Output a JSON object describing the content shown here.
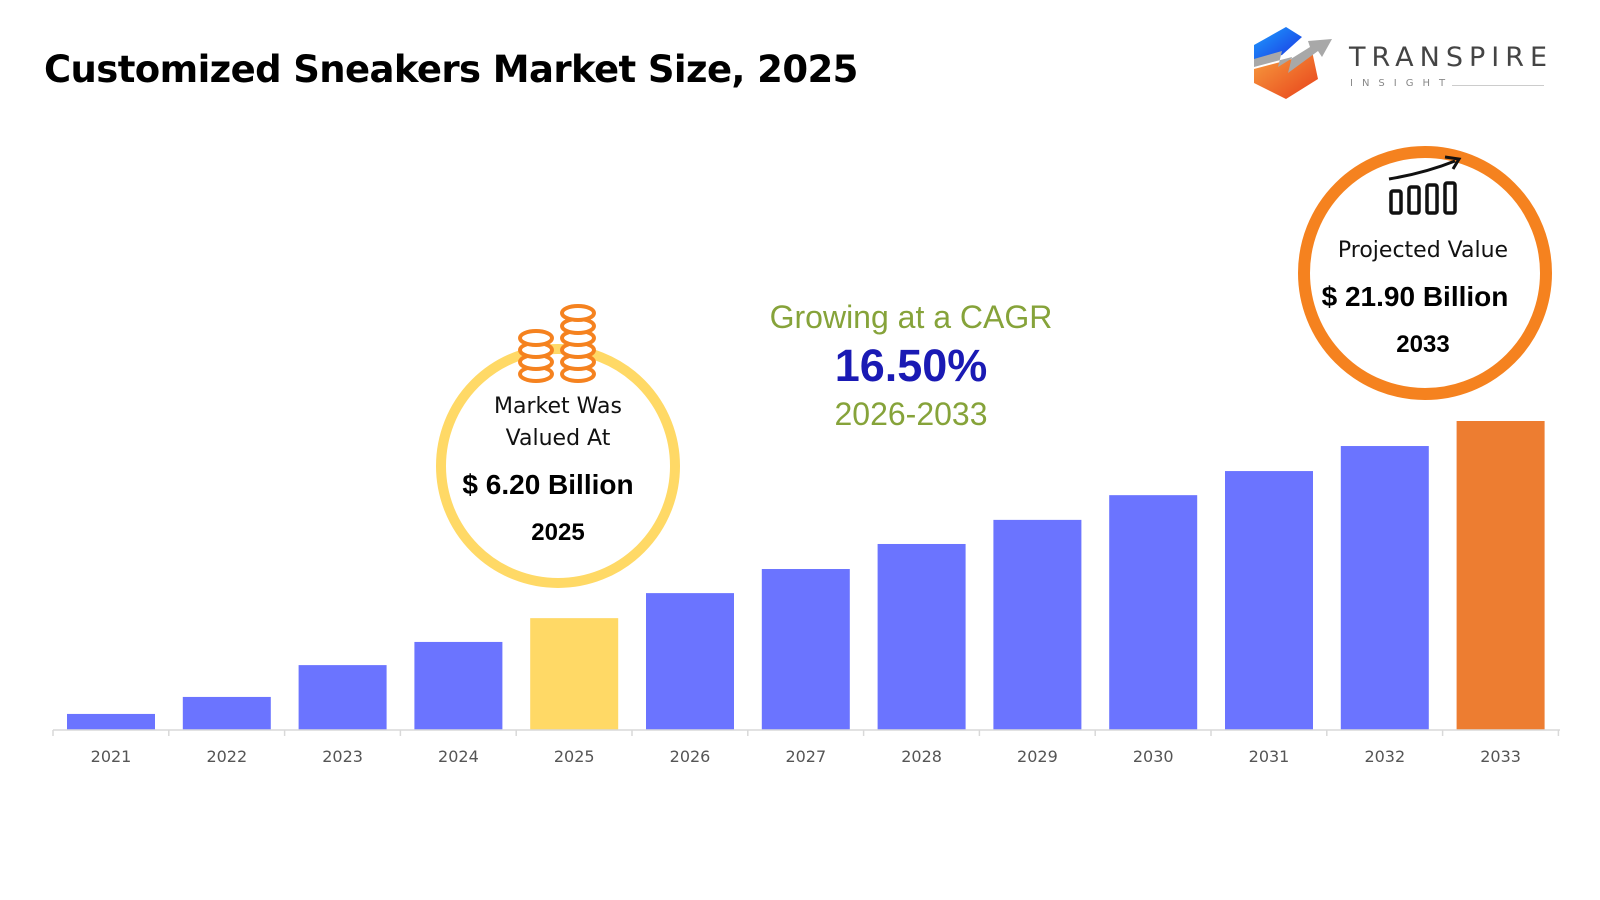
{
  "title": "Customized Sneakers Market Size, 2025",
  "logo": {
    "name": "TRANSPIRE",
    "sub": "INSIGHT"
  },
  "left_callout": {
    "line1": "Market Was",
    "line2": "Valued At",
    "value": "$ 6.20 Billion",
    "year": "2025",
    "icon": "coins-icon"
  },
  "cagr": {
    "label": "Growing at a CAGR",
    "value": "16.50%",
    "period": "2026-2033"
  },
  "right_callout": {
    "label": "Projected Value",
    "value": "$ 21.90 Billion",
    "year": "2033",
    "icon": "growth-chart-icon"
  },
  "colors": {
    "bar": "#6B74FF",
    "highlight_base": "#FFD966",
    "highlight_forecast": "#ED7D31",
    "cagr_green": "#86A33A",
    "cagr_blue": "#1A1AB4"
  },
  "chart_data": {
    "type": "bar",
    "categories": [
      "2021",
      "2022",
      "2023",
      "2024",
      "2025",
      "2026",
      "2027",
      "2028",
      "2029",
      "2030",
      "2031",
      "2032",
      "2033"
    ],
    "values": [
      5.2,
      10.7,
      21.0,
      28.5,
      36.2,
      44.3,
      52.1,
      60.2,
      68.0,
      76.0,
      83.8,
      91.9,
      100
    ],
    "value_note": "relative bar heights (% of 2033 bar); no y-axis printed",
    "highlight": {
      "2025": "#FFD966",
      "2033": "#ED7D31"
    },
    "xlabel": "",
    "ylabel": "",
    "ylim": [
      0,
      100
    ],
    "grid": false,
    "legend": "none"
  }
}
